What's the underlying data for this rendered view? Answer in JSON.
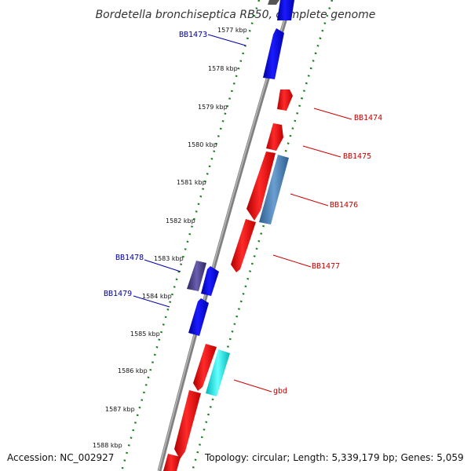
{
  "title": "Bordetella bronchiseptica RB50, complete genome",
  "footer": {
    "accession": "Accession: NC_002927",
    "summary": "Topology: circular; Length: 5,339,179 bp; Genes: 5,059"
  },
  "ticks": [
    "1577 kbp",
    "1578 kbp",
    "1579 kbp",
    "1580 kbp",
    "1581 kbp",
    "1582 kbp",
    "1583 kbp",
    "1584 kbp",
    "1585 kbp",
    "1586 kbp",
    "1587 kbp",
    "1588 kbp"
  ],
  "gene_labels": [
    {
      "name": "BB1473",
      "side": "left"
    },
    {
      "name": "BB1474",
      "side": "right"
    },
    {
      "name": "BB1475",
      "side": "right"
    },
    {
      "name": "BB1476",
      "side": "right"
    },
    {
      "name": "BB1478",
      "side": "left"
    },
    {
      "name": "BB1479",
      "side": "left"
    },
    {
      "name": "BB1477",
      "side": "right"
    },
    {
      "name": "gbd",
      "side": "right"
    }
  ],
  "colors": {
    "backbone": "#8c8c8c",
    "forward_gene": "#ff0000",
    "reverse_gene": "#0000ee",
    "steelblue_gene": "#4a7fb5",
    "cyan_gene": "#00eeee",
    "slate_gene": "#4a3f8a",
    "tick_green": "#1a7f1a",
    "left_label": "#0000aa",
    "right_label": "#cc0000"
  }
}
